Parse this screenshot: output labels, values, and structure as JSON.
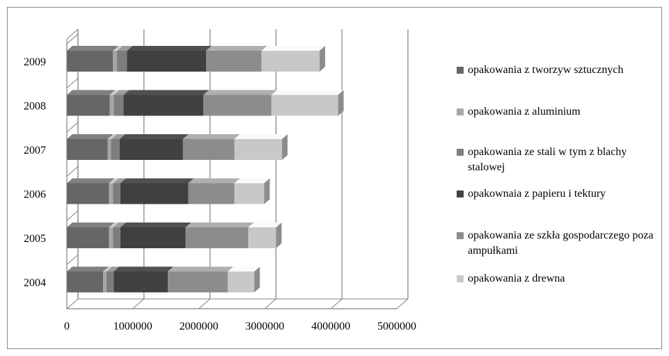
{
  "chart_data": {
    "type": "bar",
    "orientation": "horizontal",
    "stacked": true,
    "categories": [
      "2004",
      "2005",
      "2006",
      "2007",
      "2008",
      "2009"
    ],
    "series": [
      {
        "name": "opakowania z tworzyw sztucznych",
        "color": "#666666",
        "values": [
          550000,
          640000,
          640000,
          620000,
          650000,
          700000
        ]
      },
      {
        "name": "opakowania z aluminium",
        "color": "#a6a6a6",
        "values": [
          50000,
          60000,
          60000,
          50000,
          60000,
          60000
        ]
      },
      {
        "name": "opakowania ze stali w tym z blachy stalowej",
        "color": "#7d7d7d",
        "values": [
          110000,
          110000,
          110000,
          130000,
          150000,
          150000
        ]
      },
      {
        "name": "opakownaia z papieru i tektury",
        "color": "#404040",
        "values": [
          820000,
          990000,
          1030000,
          960000,
          1210000,
          1200000
        ]
      },
      {
        "name": "opakowania ze szkła gospodarczego poza ampułkami",
        "color": "#8c8c8c",
        "values": [
          910000,
          950000,
          700000,
          780000,
          1030000,
          840000
        ]
      },
      {
        "name": "opakowania z drewna",
        "color": "#c8c8c8",
        "values": [
          400000,
          420000,
          450000,
          720000,
          1010000,
          880000
        ]
      }
    ],
    "xlim": [
      0,
      5000000
    ],
    "xticks": [
      "0",
      "1000000",
      "2000000",
      "3000000",
      "4000000",
      "5000000"
    ],
    "grid": true,
    "legend_position": "right"
  }
}
